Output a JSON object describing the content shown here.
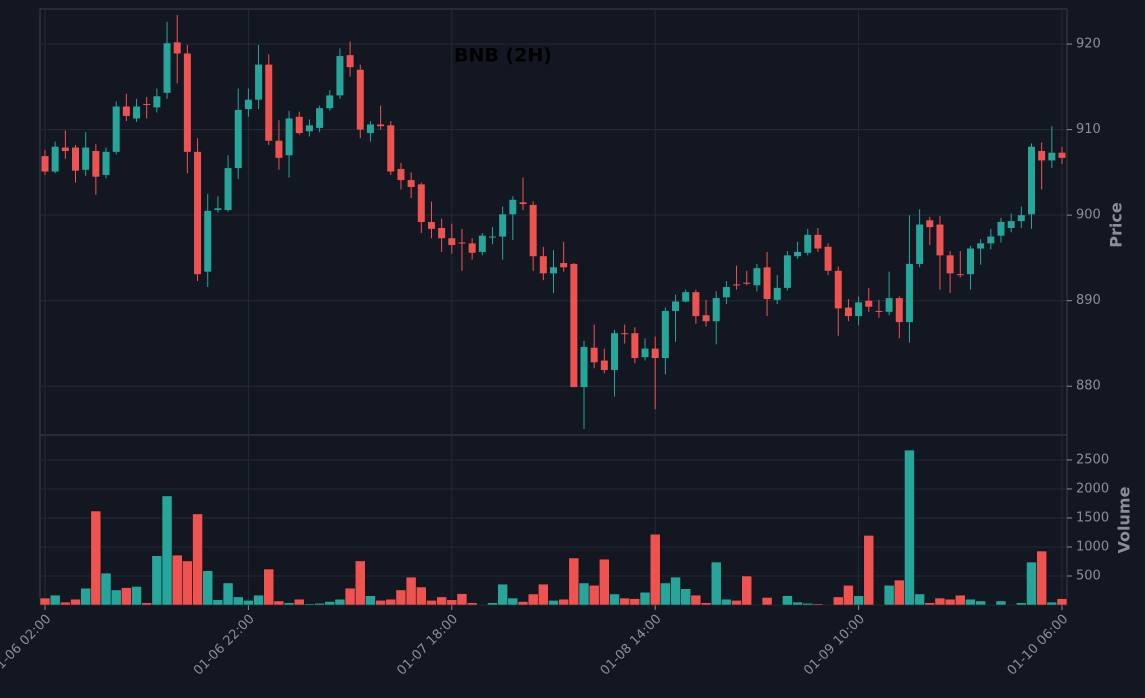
{
  "chart_data": {
    "type": "candlestick",
    "title": "BNB (2H)",
    "categories": [
      "01-06 02:00",
      null,
      null,
      null,
      null,
      null,
      null,
      null,
      null,
      null,
      null,
      null,
      null,
      null,
      null,
      null,
      null,
      null,
      null,
      null,
      "01-06 22:00",
      null,
      null,
      null,
      null,
      null,
      null,
      null,
      null,
      null,
      null,
      null,
      null,
      null,
      null,
      null,
      null,
      null,
      null,
      null,
      "01-07 18:00",
      null,
      null,
      null,
      null,
      null,
      null,
      null,
      null,
      null,
      null,
      null,
      null,
      null,
      null,
      null,
      null,
      null,
      null,
      null,
      "01-08 14:00",
      null,
      null,
      null,
      null,
      null,
      null,
      null,
      null,
      null,
      null,
      null,
      null,
      null,
      null,
      null,
      null,
      null,
      null,
      null,
      "01-09 10:00",
      null,
      null,
      null,
      null,
      null,
      null,
      null,
      null,
      null,
      null,
      null,
      null,
      null,
      null,
      null,
      null,
      null,
      null,
      null,
      "01-10 06:00"
    ],
    "open": [
      906.9,
      905.1,
      907.9,
      907.9,
      905.3,
      907.5,
      904.7,
      907.4,
      912.7,
      911.3,
      913.0,
      912.6,
      914.3,
      920.2,
      918.9,
      907.4,
      893.4,
      900.6,
      900.6,
      905.5,
      912.4,
      913.5,
      917.6,
      908.7,
      907.0,
      911.5,
      909.8,
      910.2,
      912.5,
      914.0,
      918.7,
      917.0,
      909.6,
      910.6,
      910.5,
      905.4,
      904.1,
      903.6,
      899.2,
      898.5,
      897.3,
      896.8,
      896.7,
      895.7,
      897.4,
      897.5,
      900.1,
      901.5,
      901.2,
      895.2,
      893.2,
      894.4,
      894.3,
      879.9,
      884.5,
      883.0,
      881.9,
      886.2,
      886.2,
      883.4,
      884.4,
      883.3,
      888.8,
      889.9,
      891.0,
      888.3,
      887.6,
      890.4,
      891.9,
      892.1,
      891.8,
      893.9,
      890.1,
      891.5,
      895.2,
      895.6,
      897.7,
      896.3,
      893.5,
      889.2,
      888.2,
      890.0,
      888.8,
      888.7,
      890.3,
      887.5,
      894.3,
      899.4,
      898.9,
      895.3,
      893.1,
      893.1,
      896.1,
      896.7,
      897.6,
      898.5,
      899.3,
      900.1,
      907.5,
      906.4,
      907.3
    ],
    "high": [
      907.6,
      908.6,
      909.9,
      908.2,
      909.7,
      908.3,
      907.9,
      913.3,
      914.2,
      913.6,
      913.8,
      914.8,
      922.6,
      923.4,
      919.9,
      909.0,
      902.5,
      902.2,
      907.0,
      914.8,
      914.8,
      919.9,
      918.8,
      911.1,
      912.2,
      912.1,
      911.2,
      912.8,
      914.6,
      919.5,
      920.3,
      917.6,
      911.0,
      912.8,
      911.0,
      906.1,
      905.0,
      903.8,
      901.6,
      899.6,
      899.0,
      898.4,
      897.3,
      897.9,
      898.6,
      901.0,
      902.2,
      904.4,
      901.6,
      896.3,
      895.9,
      896.9,
      894.4,
      885.3,
      887.2,
      884.4,
      886.6,
      887.2,
      886.9,
      885.6,
      885.8,
      889.2,
      890.7,
      891.3,
      891.3,
      890.1,
      891.1,
      892.3,
      894.1,
      893.5,
      894.3,
      895.7,
      893.0,
      895.8,
      896.9,
      898.4,
      898.5,
      896.7,
      894.0,
      890.2,
      890.5,
      891.5,
      890.1,
      893.4,
      890.5,
      900.0,
      900.7,
      899.8,
      899.9,
      895.8,
      895.8,
      896.4,
      897.2,
      898.4,
      899.7,
      900.2,
      901.0,
      908.4,
      908.5,
      910.4,
      908.0
    ],
    "low": [
      904.7,
      904.9,
      906.6,
      903.8,
      904.6,
      902.4,
      904.3,
      907.1,
      911.0,
      910.9,
      911.3,
      912.0,
      913.6,
      915.4,
      904.9,
      892.3,
      891.6,
      900.3,
      900.4,
      904.2,
      911.5,
      912.4,
      908.2,
      905.3,
      904.4,
      909.4,
      909.2,
      909.7,
      912.2,
      913.6,
      916.2,
      909.0,
      908.6,
      910.0,
      904.7,
      903.0,
      902.0,
      897.9,
      897.3,
      895.7,
      895.5,
      893.5,
      894.8,
      895.3,
      896.6,
      894.8,
      897.1,
      900.6,
      893.5,
      892.4,
      890.9,
      893.4,
      879.9,
      875.0,
      882.1,
      881.5,
      878.8,
      885.0,
      882.7,
      883.0,
      877.3,
      881.4,
      885.2,
      889.8,
      887.3,
      887.0,
      884.9,
      889.6,
      891.3,
      891.8,
      891.1,
      888.2,
      889.6,
      891.2,
      894.9,
      895.3,
      895.7,
      893.0,
      885.9,
      887.6,
      887.1,
      888.7,
      888.0,
      888.3,
      885.6,
      885.1,
      893.9,
      896.5,
      891.3,
      890.9,
      892.7,
      891.3,
      894.2,
      896.0,
      896.8,
      898.0,
      898.5,
      898.4,
      903.0,
      905.5,
      906.0
    ],
    "close": [
      905.1,
      908.0,
      907.5,
      905.2,
      907.9,
      904.5,
      907.4,
      912.7,
      911.6,
      912.7,
      912.9,
      913.9,
      920.1,
      918.9,
      907.4,
      893.1,
      900.5,
      900.8,
      905.5,
      912.3,
      913.5,
      917.6,
      908.7,
      906.7,
      911.3,
      909.6,
      910.5,
      912.5,
      914.0,
      918.6,
      917.3,
      910.0,
      910.6,
      910.4,
      905.1,
      904.1,
      903.3,
      899.2,
      898.4,
      897.3,
      896.5,
      896.7,
      895.6,
      897.6,
      897.5,
      900.1,
      901.8,
      901.3,
      895.2,
      893.2,
      893.9,
      893.9,
      879.9,
      884.6,
      882.8,
      881.9,
      886.2,
      886.1,
      883.3,
      884.4,
      883.3,
      888.8,
      889.9,
      891.0,
      888.2,
      887.6,
      890.3,
      891.6,
      891.8,
      892.0,
      893.8,
      890.2,
      891.5,
      895.3,
      895.7,
      897.7,
      896.1,
      893.5,
      889.1,
      888.2,
      889.8,
      889.3,
      888.7,
      890.3,
      887.5,
      894.3,
      898.9,
      898.6,
      895.3,
      893.2,
      893.0,
      896.1,
      896.7,
      897.5,
      899.2,
      899.3,
      900.0,
      908.0,
      906.4,
      907.3,
      906.7
    ],
    "volume": [
      120,
      170,
      50,
      100,
      290,
      1620,
      550,
      260,
      300,
      320,
      40,
      850,
      1880,
      860,
      760,
      1570,
      590,
      90,
      380,
      140,
      80,
      170,
      620,
      70,
      40,
      100,
      20,
      30,
      60,
      100,
      290,
      760,
      160,
      80,
      100,
      260,
      480,
      310,
      80,
      140,
      90,
      196,
      40,
      10,
      40,
      360,
      120,
      60,
      190,
      360,
      80,
      100,
      810,
      380,
      340,
      790,
      190,
      120,
      110,
      220,
      1220,
      380,
      480,
      280,
      170,
      40,
      740,
      100,
      80,
      500,
      10,
      130,
      10,
      160,
      50,
      30,
      20,
      10,
      140,
      340,
      160,
      1200,
      10,
      340,
      430,
      2670,
      190,
      40,
      120,
      100,
      170,
      100,
      70,
      10,
      70,
      10,
      40,
      740,
      930,
      50,
      110
    ],
    "ylabel": "Price",
    "ylim": [
      874.3,
      924.1
    ],
    "yticks": [
      880,
      890,
      900,
      910,
      920
    ],
    "volume_ylabel": "Volume",
    "volume_ylim": [
      0,
      2930
    ],
    "volume_yticks": [
      500,
      1000,
      1500,
      2000,
      2500
    ],
    "up_color": "#26a69a",
    "down_color": "#ef5350",
    "grid": true
  }
}
